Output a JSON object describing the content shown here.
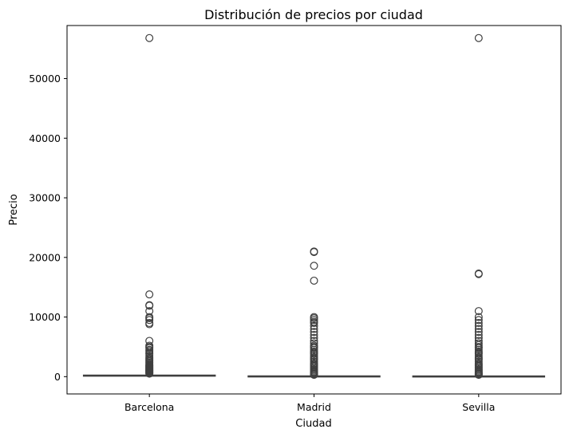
{
  "chart_data": {
    "type": "box",
    "title": "Distribución de precios por ciudad",
    "xlabel": "Ciudad",
    "ylabel": "Precio",
    "ylim": [
      -2900,
      58900
    ],
    "yticks": [
      0,
      10000,
      20000,
      30000,
      40000,
      50000
    ],
    "ytick_labels": [
      "0",
      "10000",
      "20000",
      "30000",
      "40000",
      "50000"
    ],
    "categories": [
      "Barcelona",
      "Madrid",
      "Sevilla"
    ],
    "grid": false,
    "legend": "none",
    "colors": {
      "box": "#3274a1",
      "line": "#3f3f3f",
      "outlier_edge": "#3f3f3f"
    },
    "boxes": [
      {
        "name": "Barcelona",
        "q1": 100,
        "median": 150,
        "q3": 250,
        "whisker_low": 0,
        "whisker_high": 450,
        "outliers": [
          56800,
          13800,
          12000,
          11900,
          11000,
          10000,
          9800,
          9500,
          9000,
          8800,
          6000,
          5200,
          5000,
          4800,
          4500,
          4300,
          4000,
          3800,
          3500,
          3200,
          3000,
          2800,
          2600,
          2400,
          2200,
          2000,
          1900,
          1800,
          1700,
          1600,
          1500,
          1400,
          1300,
          1200,
          1100,
          1000,
          900,
          800,
          700,
          600,
          500
        ]
      },
      {
        "name": "Madrid",
        "q1": 40,
        "median": 80,
        "q3": 120,
        "whisker_low": 0,
        "whisker_high": 240,
        "outliers": [
          21000,
          20900,
          18600,
          16100,
          10000,
          9800,
          9500,
          9200,
          9000,
          8500,
          8000,
          7500,
          7000,
          6500,
          6000,
          5600,
          5200,
          5000,
          4800,
          4500,
          4200,
          4000,
          3800,
          3500,
          3200,
          3000,
          2800,
          2500,
          2200,
          2000,
          1800,
          1600,
          1400,
          1200,
          1000,
          800,
          650,
          500,
          400,
          300
        ]
      },
      {
        "name": "Sevilla",
        "q1": 40,
        "median": 70,
        "q3": 110,
        "whisker_low": 0,
        "whisker_high": 220,
        "outliers": [
          56800,
          17300,
          17200,
          11000,
          10000,
          9500,
          9000,
          8500,
          8000,
          7500,
          7000,
          6500,
          6000,
          5600,
          5300,
          5000,
          4800,
          4500,
          4200,
          4000,
          3800,
          3500,
          3200,
          3000,
          2800,
          2500,
          2200,
          2000,
          1800,
          1600,
          1400,
          1200,
          1000,
          800,
          650,
          500,
          400,
          300
        ]
      }
    ]
  }
}
